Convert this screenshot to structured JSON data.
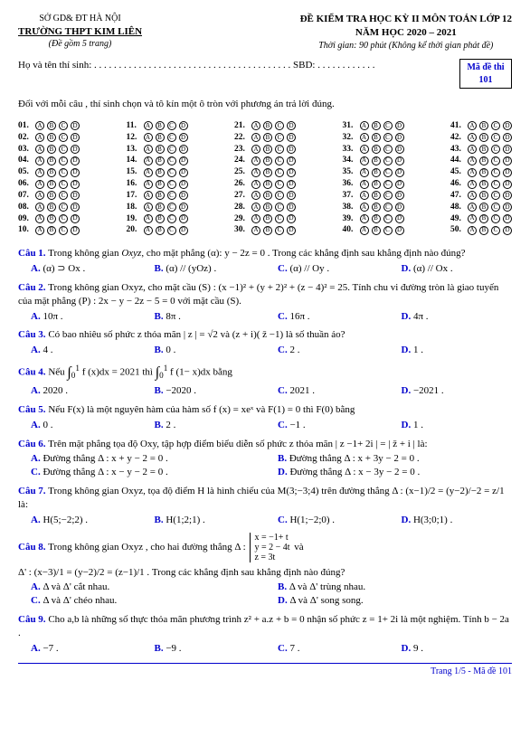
{
  "header": {
    "org": "SỞ GD& ĐT  HÀ NỘI",
    "school": "TRƯỜNG THPT KIM LIÊN",
    "pages": "(Đề gồm 5 trang)",
    "title": "ĐỀ KIỂM TRA HỌC KỲ II MÔN TOÁN LỚP 12",
    "year": "NĂM HỌC 2020 – 2021",
    "time": "Thời gian: 90 phút (Không kể thời gian phát đề)"
  },
  "name_line": "Họ và tên thí sinh: . . . . . . . . . . . . . . . . . . . . . . . . . . . . . . . . . . . . . . . .   SBD: . . . . . . . . . . . .",
  "code_box": {
    "l1": "Mã đề thi",
    "l2": "101"
  },
  "instruction": "Đối với mỗi câu , thí sinh chọn và tô kín một ô tròn với phương án trả lời đúng.",
  "bubble_cols": [
    [
      "01.",
      "02.",
      "03.",
      "04.",
      "05.",
      "06.",
      "07.",
      "08.",
      "09.",
      "10."
    ],
    [
      "11.",
      "12.",
      "13.",
      "14.",
      "15.",
      "16.",
      "17.",
      "18.",
      "19.",
      "20."
    ],
    [
      "21.",
      "22.",
      "23.",
      "24.",
      "25.",
      "26.",
      "27.",
      "28.",
      "29.",
      "30."
    ],
    [
      "31.",
      "32.",
      "33.",
      "34.",
      "35.",
      "36.",
      "37.",
      "38.",
      "39.",
      "40."
    ],
    [
      "41.",
      "42.",
      "43.",
      "44.",
      "45.",
      "46.",
      "47.",
      "48.",
      "49.",
      "50."
    ]
  ],
  "bubble_letters": [
    "A",
    "B",
    "C",
    "D"
  ],
  "q1": {
    "label": "Câu 1.",
    "text1": " Trong không gian ",
    "i1": "Oxyz",
    "text2": ",  cho mặt phẳng (α): y − 2z = 0 . Trong các khẳng định sau khẳng định nào đúng?",
    "A": "(α) ⊃ Ox .",
    "B": "(α) // (yOz) .",
    "C": "(α) // Oy .",
    "D": "(α) // Ox ."
  },
  "q2": {
    "label": "Câu 2.",
    "text": " Trong không gian  Oxyz, cho mặt cầu (S) : (x −1)² + (y + 2)² + (z − 4)² = 25. Tính chu vi đường tròn là giao tuyến của mặt phẳng (P) : 2x − y − 2z − 5 = 0  với mặt cầu (S).",
    "A": "10π .",
    "B": "8π .",
    "C": "16π .",
    "D": "4π ."
  },
  "q3": {
    "label": "Câu 3.",
    "text": " Có bao nhiêu số phức z thỏa mãn | z | = √2 và (z + i)( z̄ −1) là số thuần ảo?",
    "A": "4 .",
    "B": "0 .",
    "C": "2 .",
    "D": "1 ."
  },
  "q4": {
    "label": "Câu 4.",
    "text1": " Nếu ",
    "int1a": "1",
    "int1b": "0",
    "mid": " f (x)dx = 2021  thì ",
    "int2a": "1",
    "int2b": "0",
    "text2": " f (1− x)dx bằng",
    "A": "2020 .",
    "B": "−2020 .",
    "C": "2021 .",
    "D": "−2021 ."
  },
  "q5": {
    "label": "Câu 5.",
    "text": " Nếu F(x) là một nguyên hàm của hàm số f (x) = xeˣ  và F(1) = 0 thì F(0)  bằng",
    "A": "0 .",
    "B": "2 .",
    "C": "−1 .",
    "D": "1 ."
  },
  "q6": {
    "label": "Câu 6.",
    "text": " Trên mặt phẳng tọa độ Oxy,  tập hợp điểm biểu diễn số phức z thỏa mãn | z −1+ 2i | = | z̄ + i | là:",
    "A": "Đường thẳng  Δ : x + y − 2 = 0 .",
    "B": "Đường thẳng  Δ : x + 3y − 2 = 0 .",
    "C": "Đường thẳng  Δ : x − y − 2 = 0 .",
    "D": "Đường thẳng  Δ : x − 3y − 2 = 0 ."
  },
  "q7": {
    "label": "Câu 7.",
    "text": " Trong không gian Oxyz, tọa độ điểm H là hình chiếu của M(3;−3;4) trên đường thẳng Δ : (x−1)/2 = (y−2)/−2 = z/1 là:",
    "A": "H(5;−2;2) .",
    "B": "H(1;2;1) .",
    "C": "H(1;−2;0) .",
    "D": "H(3;0;1) ."
  },
  "q8": {
    "label": "Câu 8.",
    "text1": " Trong không gian Oxyz ,  cho hai đường thẳng Δ : ",
    "sys1": "x = −1+ t",
    "sys2": "y = 2 − 4t",
    "sys3": "z = 3t",
    "text2": "  và",
    "text3": "Δ' : (x−3)/1 = (y−2)/2 = (z−1)/1 .  Trong các khẳng định sau khẳng định nào đúng?",
    "A": "Δ và Δ' cắt nhau.",
    "B": "Δ và Δ' trùng nhau.",
    "C": "Δ và Δ' chéo nhau.",
    "D": "Δ và Δ' song song."
  },
  "q9": {
    "label": "Câu 9.",
    "text": " Cho a,b là những số thực thỏa mãn phương trình z² + a.z + b = 0  nhận số phức z = 1+ 2i  là một nghiệm. Tính b − 2a .",
    "A": "−7 .",
    "B": "−9 .",
    "C": "7 .",
    "D": "9 ."
  },
  "footer": "Trang 1/5 - Mã đề 101"
}
